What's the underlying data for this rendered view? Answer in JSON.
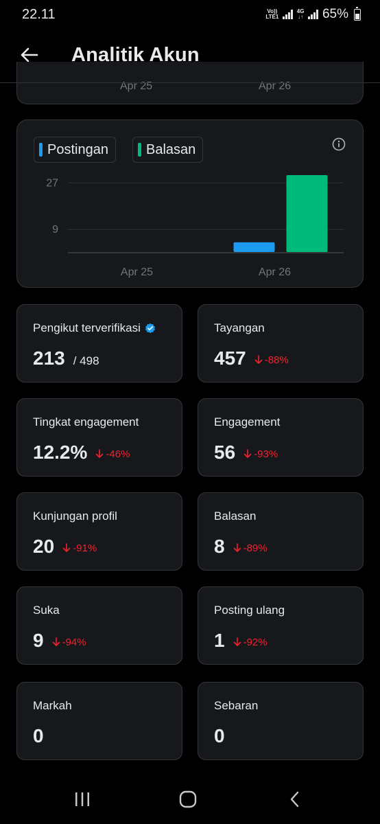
{
  "status": {
    "time": "22.11",
    "volte": "Vo)) LTE1",
    "network": "4G",
    "battery_percent": "65%",
    "battery_level": 0.65
  },
  "header": {
    "title": "Analitik Akun"
  },
  "top_card": {
    "x_labels": [
      "Apr 25",
      "Apr 26"
    ]
  },
  "chart_data": {
    "type": "bar",
    "categories": [
      "Apr 25",
      "Apr 26"
    ],
    "series": [
      {
        "name": "Postingan",
        "color": "#1d9bf0",
        "values": [
          0,
          4
        ]
      },
      {
        "name": "Balasan",
        "color": "#00ba7c",
        "values": [
          0,
          30
        ]
      }
    ],
    "y_ticks": [
      27,
      9
    ],
    "ylim": [
      0,
      30
    ],
    "grid": true,
    "legend": "top-left"
  },
  "stats": [
    {
      "label": "Pengikut terverifikasi",
      "value": "213",
      "sub": "/ 498",
      "verified": true
    },
    {
      "label": "Tayangan",
      "value": "457",
      "change": "-88%"
    },
    {
      "label": "Tingkat engagement",
      "value": "12.2%",
      "change": "-46%"
    },
    {
      "label": "Engagement",
      "value": "56",
      "change": "-93%"
    },
    {
      "label": "Kunjungan profil",
      "value": "20",
      "change": "-91%"
    },
    {
      "label": "Balasan",
      "value": "8",
      "change": "-89%"
    },
    {
      "label": "Suka",
      "value": "9",
      "change": "-94%"
    },
    {
      "label": "Posting ulang",
      "value": "1",
      "change": "-92%"
    },
    {
      "label": "Markah",
      "value": "0"
    },
    {
      "label": "Sebaran",
      "value": "0"
    }
  ],
  "colors": {
    "background": "#000000",
    "card": "#16181c",
    "border": "#333639",
    "negative": "#f4212e",
    "accent_blue": "#1d9bf0",
    "accent_green": "#00ba7c"
  },
  "icons": {
    "back": "arrow-left-icon",
    "info": "info-icon",
    "verified": "verified-badge-icon",
    "change": "arrow-down-icon",
    "nav_recents": "recents-icon",
    "nav_home": "home-icon",
    "nav_back": "chevron-left-icon"
  }
}
